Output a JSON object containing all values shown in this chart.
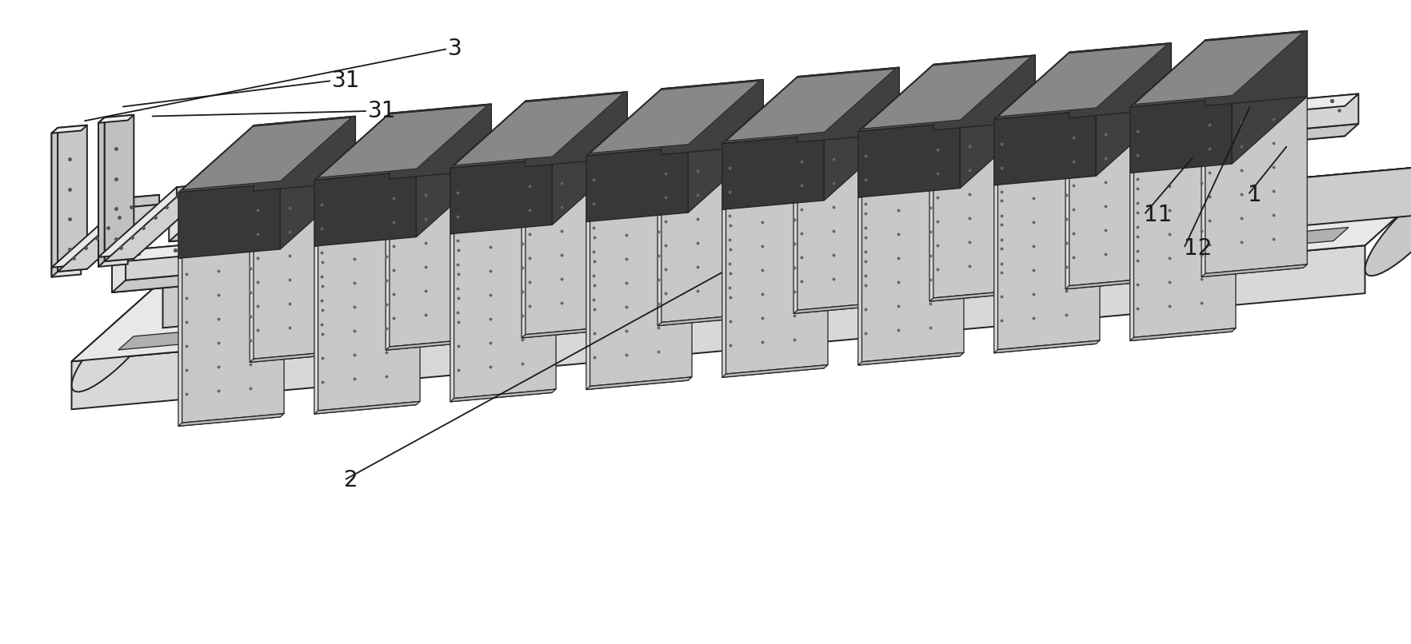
{
  "bg_color": "#ffffff",
  "lc": "#222222",
  "lc_thin": "#444444",
  "c_light": "#eeeeee",
  "c_mid": "#cccccc",
  "c_dark": "#999999",
  "c_darker": "#666666",
  "c_darkest": "#444444",
  "c_black": "#333333",
  "figsize": [
    17.64,
    8.06
  ],
  "dpi": 100
}
